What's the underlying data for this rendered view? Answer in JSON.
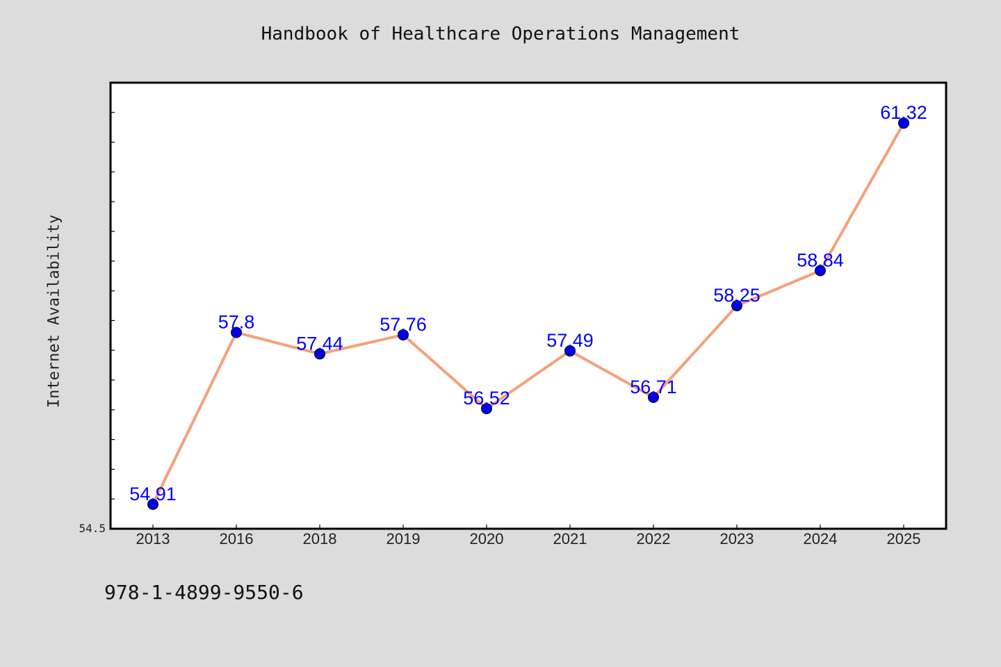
{
  "chart_data": {
    "type": "line",
    "title": "Handbook of Healthcare Operations Management",
    "xlabel": "",
    "ylabel": "Internet Availability",
    "categories": [
      "2013",
      "2016",
      "2018",
      "2019",
      "2020",
      "2021",
      "2022",
      "2023",
      "2024",
      "2025"
    ],
    "values": [
      54.91,
      57.8,
      57.44,
      57.76,
      56.52,
      57.49,
      56.71,
      58.25,
      58.84,
      61.32
    ],
    "data_labels": [
      "54.91",
      "57.8",
      "57.44",
      "57.76",
      "56.52",
      "57.49",
      "56.71",
      "58.25",
      "58.84",
      "61.32"
    ],
    "ylim": [
      54.5,
      62.0
    ],
    "y_tick_label": "54.5",
    "grid": false,
    "line_color": "#f4a07a",
    "marker_color": "#0000ee",
    "label_color": "#0000ff"
  },
  "footer": {
    "identifier": "978-1-4899-9550-6"
  }
}
